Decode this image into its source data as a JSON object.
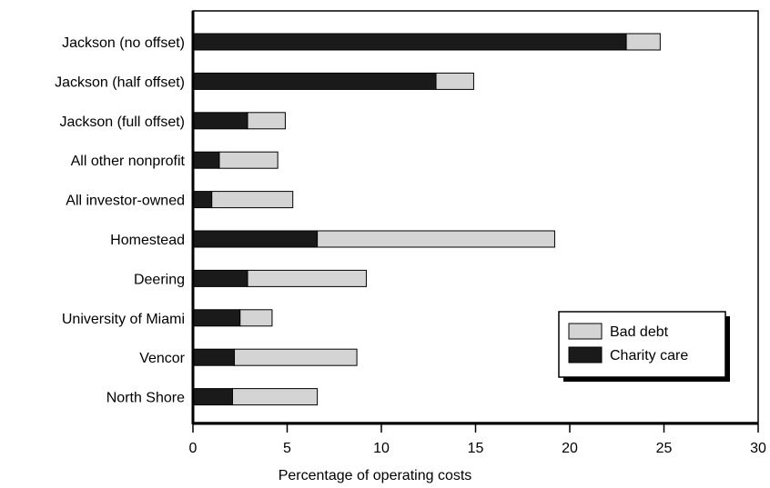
{
  "chart_data": {
    "type": "bar",
    "orientation": "horizontal",
    "stacked": true,
    "title": "",
    "xlabel": "Percentage of operating costs",
    "ylabel": "",
    "xlim": [
      0,
      30
    ],
    "xticks": [
      0,
      5,
      10,
      15,
      20,
      25,
      30
    ],
    "grid": false,
    "legend_position": "bottom-right",
    "categories": [
      "Jackson (no offset)",
      "Jackson (half offset)",
      "Jackson (full offset)",
      "All other nonprofit",
      "All investor-owned",
      "Homestead",
      "Deering",
      "University of Miami",
      "Vencor",
      "North Shore"
    ],
    "series": [
      {
        "name": "Charity care",
        "color": "#1a1a1a",
        "values": [
          23.0,
          12.9,
          2.9,
          1.4,
          1.0,
          6.6,
          2.9,
          2.5,
          2.2,
          2.1
        ]
      },
      {
        "name": "Bad debt",
        "color": "#d4d4d4",
        "values": [
          1.8,
          2.0,
          2.0,
          3.1,
          4.3,
          12.6,
          6.3,
          1.7,
          6.5,
          4.5
        ]
      }
    ],
    "legend_order": [
      "Bad debt",
      "Charity care"
    ]
  }
}
